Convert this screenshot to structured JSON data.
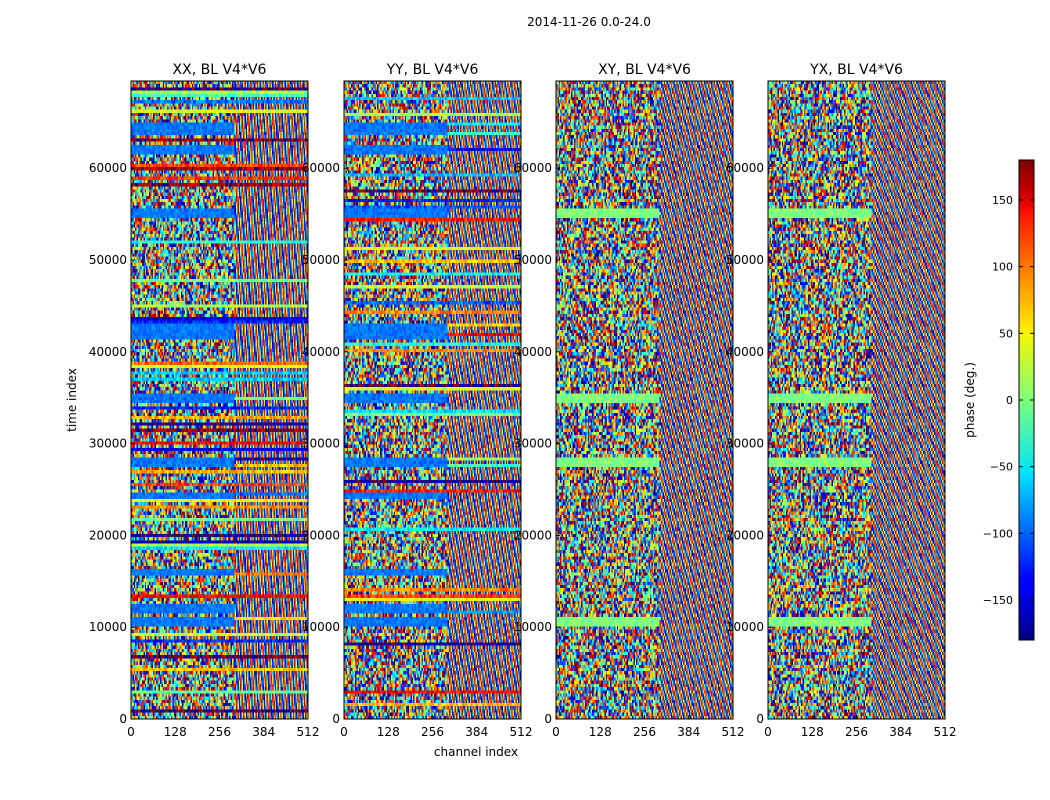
{
  "figure_title": "2014-11-26 0.0-24.0",
  "chart_data": {
    "type": "heatmap",
    "title": "2014-11-26 0.0-24.0",
    "xlabel": "channel index",
    "ylabel": "time index",
    "xlim": [
      0,
      512
    ],
    "ylim": [
      0,
      69500
    ],
    "x_ticks": [
      0,
      128,
      256,
      384,
      512
    ],
    "y_ticks": [
      0,
      10000,
      20000,
      30000,
      40000,
      50000,
      60000
    ],
    "panels": [
      {
        "title": "XX, BL V4*V6",
        "blue_bands": [
          [
            27500,
            28500
          ],
          [
            34500,
            35500
          ],
          [
            41500,
            43000
          ],
          [
            54500,
            55500
          ],
          [
            61500,
            62500
          ],
          [
            63500,
            65000
          ],
          [
            15500,
            16500
          ],
          [
            24000,
            24500
          ],
          [
            11500,
            12500
          ],
          [
            10000,
            11000
          ]
        ]
      },
      {
        "title": "YY, BL V4*V6",
        "blue_bands": [
          [
            27500,
            28500
          ],
          [
            34500,
            35500
          ],
          [
            41500,
            43000
          ],
          [
            54500,
            55500
          ],
          [
            61500,
            62500
          ],
          [
            63500,
            65000
          ],
          [
            15500,
            16500
          ],
          [
            24000,
            24500
          ],
          [
            11500,
            12500
          ],
          [
            10000,
            11000
          ]
        ]
      },
      {
        "title": "XY, BL V4*V6",
        "blue_bands": []
      },
      {
        "title": "YX, BL V4*V6",
        "blue_bands": []
      }
    ],
    "colorbar": {
      "label": "phase (deg.)",
      "range": [
        -180,
        180
      ],
      "ticks": [
        150,
        100,
        50,
        0,
        -50,
        -100,
        -150
      ],
      "tick_labels": [
        "150",
        "100",
        "50",
        "0",
        "−50",
        "−100",
        "−150"
      ],
      "colormap": "jet"
    },
    "green_bands": [
      [
        54500,
        55500
      ],
      [
        34500,
        35500
      ],
      [
        27500,
        28500
      ],
      [
        10000,
        11000
      ]
    ]
  }
}
